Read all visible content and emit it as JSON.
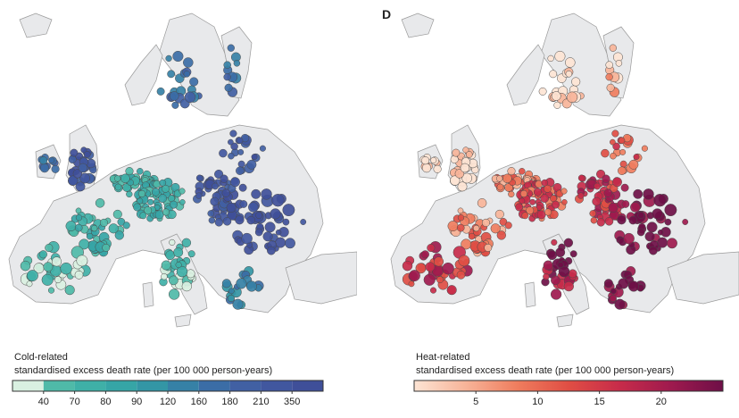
{
  "panels": [
    {
      "id": "cold",
      "letter": "",
      "legend_title_line1": "Cold-related",
      "legend_title_line2": "standardised excess death rate (per 100 000 person-years)",
      "scale_type": "categorical",
      "tick_labels": [
        "40",
        "70",
        "80",
        "90",
        "120",
        "160",
        "180",
        "210",
        "350"
      ],
      "colors": [
        "#d9f0e1",
        "#4fbaa8",
        "#3fb0a7",
        "#36a5a6",
        "#3396a5",
        "#3681a6",
        "#3b6da6",
        "#4160a3",
        "#41579f",
        "#3f4f99"
      ]
    },
    {
      "id": "heat",
      "letter": "D",
      "legend_title_line1": "Heat-related",
      "legend_title_line2": "standardised excess death rate (per 100 000 person-years)",
      "scale_type": "continuous",
      "range": [
        0,
        25
      ],
      "tick_values": [
        5,
        10,
        15,
        20
      ],
      "tick_labels": [
        "5",
        "10",
        "15",
        "20"
      ],
      "colors": [
        "#fde4d4",
        "#f7b499",
        "#ef7d5e",
        "#e04e44",
        "#c72b4a",
        "#9e1a4e",
        "#6e0f47"
      ]
    }
  ],
  "land_color": "#e8e9eb",
  "border_color": "#9a9a9a",
  "dot_stroke": "#4a4a4a"
}
